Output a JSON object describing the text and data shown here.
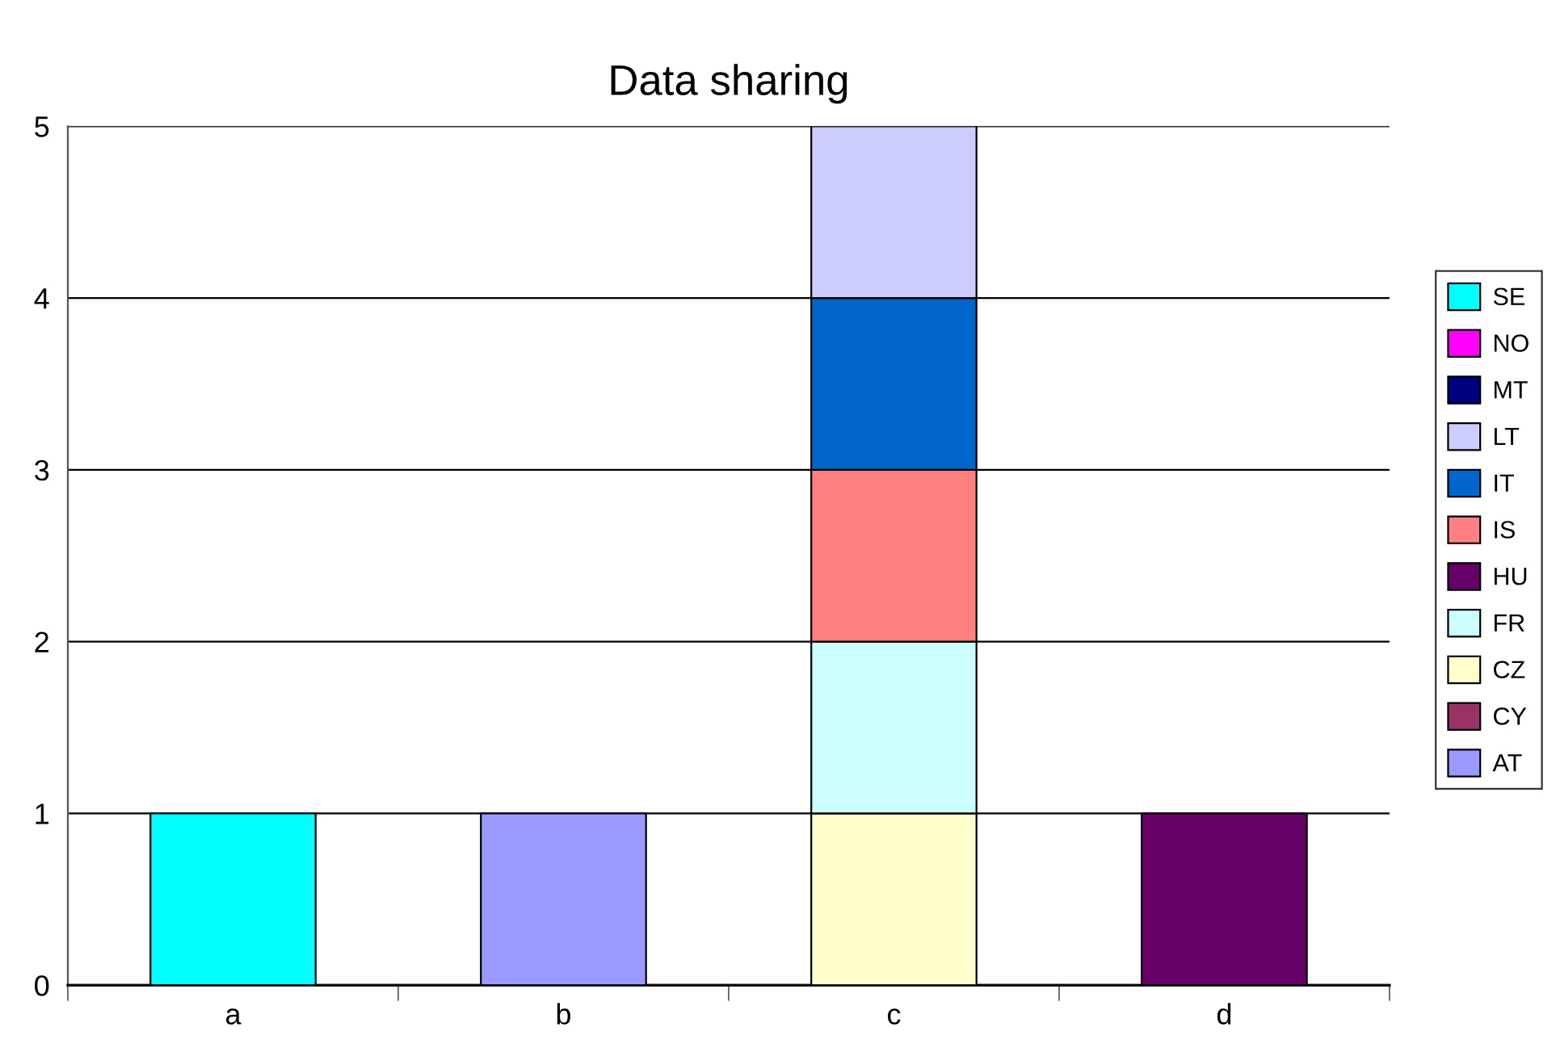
{
  "chart_data": {
    "type": "bar",
    "title": "Data sharing",
    "stacked": true,
    "categories": [
      "a",
      "b",
      "c",
      "d"
    ],
    "series": [
      {
        "name": "AT",
        "color": "#9999ff",
        "values": [
          null,
          1,
          null,
          null
        ]
      },
      {
        "name": "CY",
        "color": "#993366",
        "values": [
          null,
          null,
          null,
          null
        ]
      },
      {
        "name": "CZ",
        "color": "#ffffcc",
        "values": [
          null,
          null,
          1,
          null
        ]
      },
      {
        "name": "FR",
        "color": "#ccffff",
        "values": [
          null,
          null,
          1,
          null
        ]
      },
      {
        "name": "HU",
        "color": "#660066",
        "values": [
          null,
          null,
          null,
          1
        ]
      },
      {
        "name": "IS",
        "color": "#ff8080",
        "values": [
          null,
          null,
          1,
          null
        ]
      },
      {
        "name": "IT",
        "color": "#0066cc",
        "values": [
          null,
          null,
          1,
          null
        ]
      },
      {
        "name": "LT",
        "color": "#ccccff",
        "values": [
          null,
          null,
          1,
          null
        ]
      },
      {
        "name": "MT",
        "color": "#000080",
        "values": [
          null,
          null,
          null,
          null
        ]
      },
      {
        "name": "NO",
        "color": "#ff00ff",
        "values": [
          null,
          null,
          null,
          null
        ]
      },
      {
        "name": "SE",
        "color": "#00ffff",
        "values": [
          1,
          null,
          null,
          null
        ]
      }
    ],
    "ylim": [
      0,
      5
    ],
    "yticks": [
      0,
      1,
      2,
      3,
      4,
      5
    ],
    "grid": "y",
    "legend": "right"
  }
}
